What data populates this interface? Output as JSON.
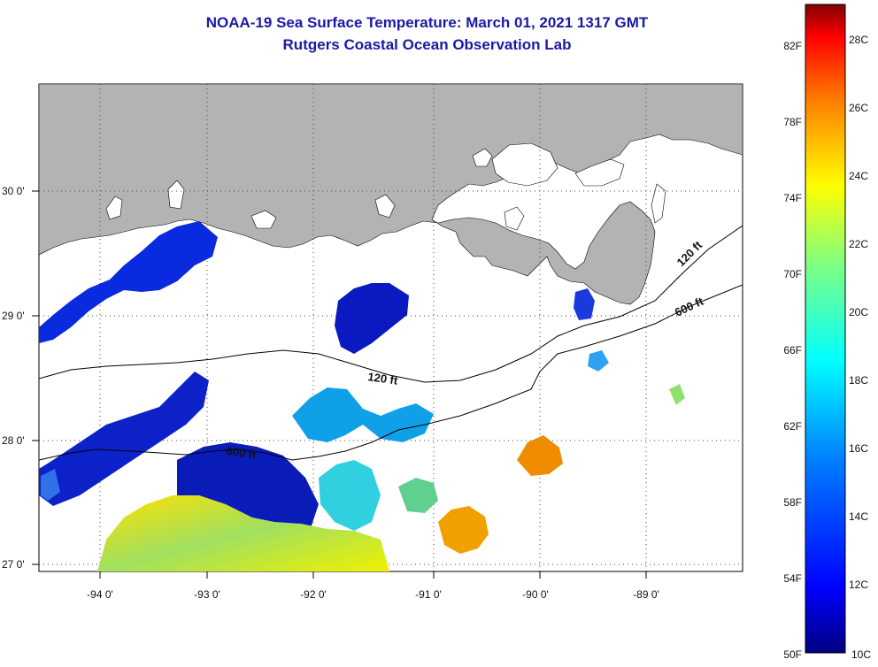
{
  "header": {
    "title": "NOAA-19 Sea Surface Temperature:  March 01, 2021 1317 GMT",
    "subtitle": "Rutgers Coastal Ocean Observation Lab"
  },
  "map": {
    "longitude_labels": [
      "-94 0'",
      "-93 0'",
      "-92 0'",
      "-91 0'",
      "-90 0'",
      "-89 0'"
    ],
    "latitude_labels": [
      "30 0'",
      "29 0'",
      "28 0'",
      "27 0'"
    ],
    "contour_labels": [
      "120 ft",
      "600 ft",
      "120 ft",
      "600 ft"
    ],
    "land_color": "#b3b3b3",
    "grid": "dotted"
  },
  "colorbar": {
    "fahrenheit_labels": [
      "82F",
      "78F",
      "74F",
      "70F",
      "66F",
      "62F",
      "58F",
      "54F",
      "50F"
    ],
    "celsius_labels": [
      "28C",
      "26C",
      "24C",
      "22C",
      "20C",
      "18C",
      "16C",
      "14C",
      "12C",
      "10C"
    ],
    "colors": [
      "#800000",
      "#ff0000",
      "#ff8000",
      "#ffff00",
      "#80ff80",
      "#00ffff",
      "#0080ff",
      "#0000ff",
      "#000080"
    ]
  }
}
